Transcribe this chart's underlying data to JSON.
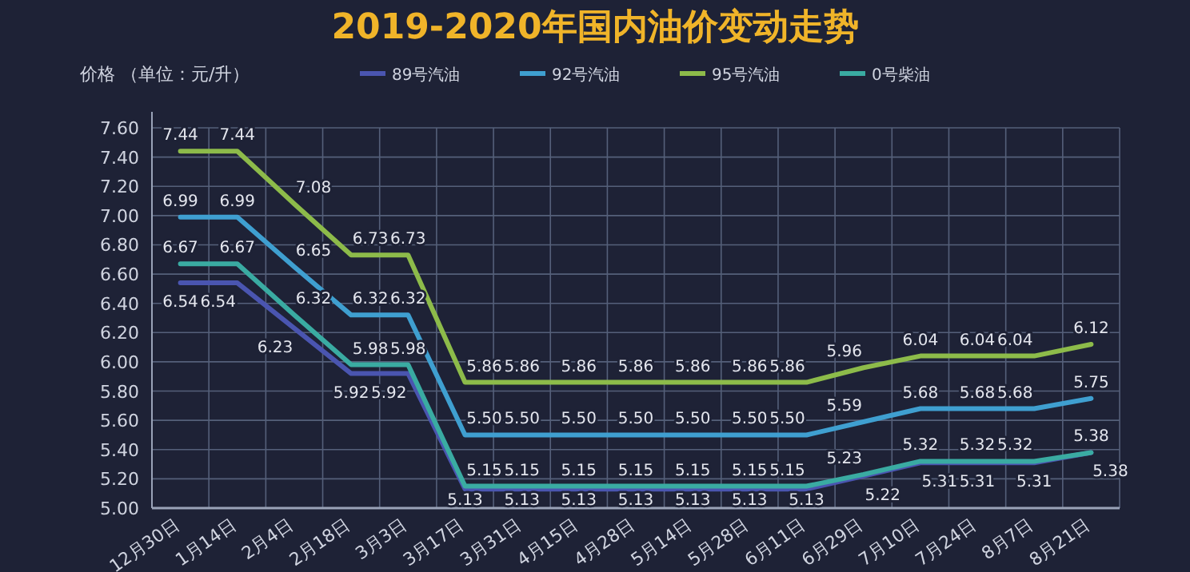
{
  "chart_data": {
    "type": "line",
    "title": "2019-2020年国内油价变动走势",
    "ylabel": "价格 （单位：元/升）",
    "categories": [
      "12月30日",
      "1月14日",
      "2月4日",
      "2月18日",
      "3月3日",
      "3月17日",
      "3月31日",
      "4月15日",
      "4月28日",
      "5月14日",
      "5月28日",
      "6月11日",
      "6月29日",
      "7月10日",
      "7月24日",
      "8月7日",
      "8月21日"
    ],
    "series": [
      {
        "name": "89号汽油",
        "color": "#4a55b0",
        "values": [
          6.54,
          6.54,
          6.23,
          5.92,
          5.92,
          5.13,
          5.13,
          5.13,
          5.13,
          5.13,
          5.13,
          5.13,
          5.22,
          5.31,
          5.31,
          5.31,
          5.38
        ],
        "value_labels": [
          "6.54",
          "6.54",
          "6.23",
          "5.92",
          "5.92",
          "5.13",
          "5.13",
          "5.13",
          "5.13",
          "5.13",
          "5.13",
          "5.13",
          "5.22",
          "5.31",
          "5.31",
          "5.31",
          "5.38"
        ]
      },
      {
        "name": "92号汽油",
        "color": "#3f9fd0",
        "values": [
          6.99,
          6.99,
          6.65,
          6.32,
          6.32,
          5.5,
          5.5,
          5.5,
          5.5,
          5.5,
          5.5,
          5.5,
          5.59,
          5.68,
          5.68,
          5.68,
          5.75
        ],
        "value_labels": [
          "6.99",
          "6.99",
          "6.65",
          "6.32",
          "6.32",
          "5.50",
          "5.50",
          "5.50",
          "5.50",
          "5.50",
          "5.50",
          "5.50",
          "5.59",
          "5.68",
          "5.68",
          "5.68",
          "5.75"
        ]
      },
      {
        "name": "95号汽油",
        "color": "#8dbb4a",
        "values": [
          7.44,
          7.44,
          7.08,
          6.73,
          6.73,
          5.86,
          5.86,
          5.86,
          5.86,
          5.86,
          5.86,
          5.86,
          5.96,
          6.04,
          6.04,
          6.04,
          6.12
        ],
        "value_labels": [
          "7.44",
          "7.44",
          "7.08",
          "6.73",
          "6.73",
          "5.86",
          "5.86",
          "5.86",
          "5.86",
          "5.86",
          "5.86",
          "5.86",
          "5.96",
          "6.04",
          "6.04",
          "6.04",
          "6.12"
        ]
      },
      {
        "name": "0号柴油",
        "color": "#3aaba2",
        "values": [
          6.67,
          6.67,
          6.32,
          5.98,
          5.98,
          5.15,
          5.15,
          5.15,
          5.15,
          5.15,
          5.15,
          5.15,
          5.23,
          5.32,
          5.32,
          5.32,
          5.38
        ],
        "value_labels": [
          "6.67",
          "6.67",
          "6.32",
          "5.98",
          "5.98",
          "5.15",
          "5.15",
          "5.15",
          "5.15",
          "5.15",
          "5.15",
          "5.15",
          "5.23",
          "5.32",
          "5.32",
          "5.32",
          "5.38"
        ]
      }
    ],
    "ylim": [
      5.0,
      7.6
    ],
    "yticks": [
      {
        "value": 5.0,
        "label": "5.00"
      },
      {
        "value": 5.2,
        "label": "5.20"
      },
      {
        "value": 5.4,
        "label": "5.40"
      },
      {
        "value": 5.6,
        "label": "5.60"
      },
      {
        "value": 5.8,
        "label": "5.80"
      },
      {
        "value": 6.0,
        "label": "6.00"
      },
      {
        "value": 6.2,
        "label": "6.20"
      },
      {
        "value": 6.4,
        "label": "6.40"
      },
      {
        "value": 6.6,
        "label": "6.60"
      },
      {
        "value": 6.8,
        "label": "6.80"
      },
      {
        "value": 7.0,
        "label": "7.00"
      },
      {
        "value": 7.2,
        "label": "7.20"
      },
      {
        "value": 7.4,
        "label": "7.40"
      },
      {
        "value": 7.6,
        "label": "7.60"
      }
    ],
    "grid": true,
    "legend": "top",
    "marker": "none",
    "line_style": "solid"
  }
}
